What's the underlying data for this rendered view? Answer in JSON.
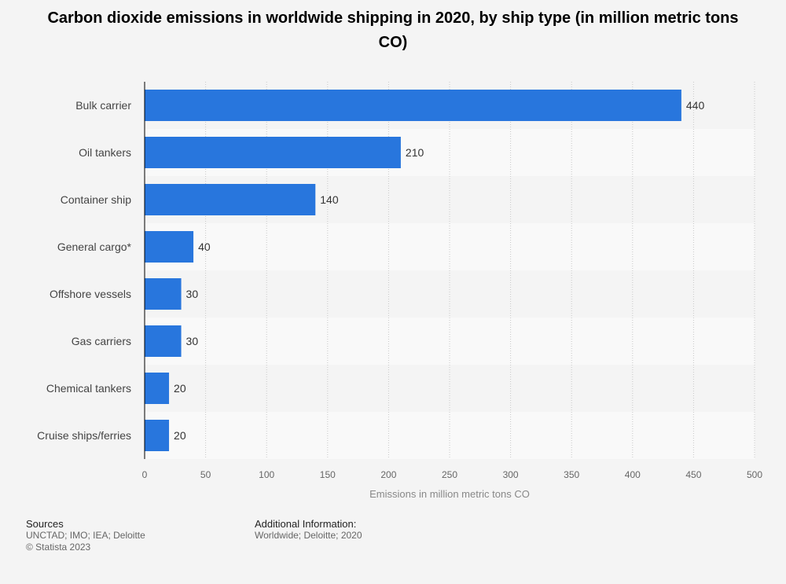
{
  "chart_data": {
    "type": "bar",
    "orientation": "horizontal",
    "title": "Carbon dioxide emissions in worldwide shipping in 2020, by ship type (in million metric tons CO)",
    "categories": [
      "Bulk carrier",
      "Oil tankers",
      "Container ship",
      "General cargo*",
      "Offshore vessels",
      "Gas carriers",
      "Chemical tankers",
      "Cruise ships/ferries"
    ],
    "values": [
      440,
      210,
      140,
      40,
      30,
      30,
      20,
      20
    ],
    "xlabel": "Emissions in million metric tons CO",
    "ylabel": "",
    "xlim": [
      0,
      500
    ],
    "ticks": [
      0,
      50,
      100,
      150,
      200,
      250,
      300,
      350,
      400,
      450,
      500
    ],
    "grid": true,
    "bar_color": "#2876dd"
  },
  "footer": {
    "sources_heading": "Sources",
    "sources_line1": "UNCTAD; IMO; IEA; Deloitte",
    "sources_line2": "© Statista 2023",
    "additional_heading": "Additional Information:",
    "additional_text": "Worldwide; Deloitte; 2020"
  }
}
